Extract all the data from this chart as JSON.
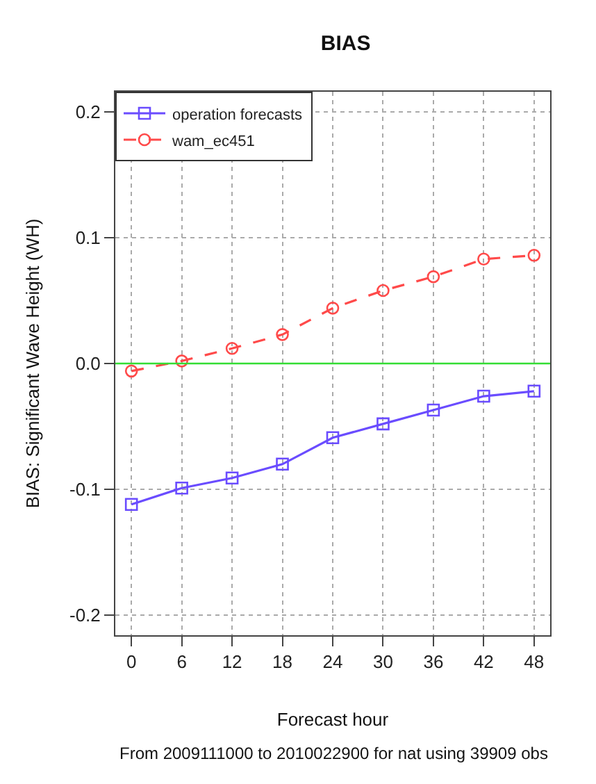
{
  "chart_data": {
    "type": "line",
    "title": "BIAS",
    "xlabel": "Forecast hour",
    "ylabel": "BIAS: Significant Wave Height (WH)",
    "annotations": [
      "From 2009111000 to 2010022900 for nat using 39909 obs"
    ],
    "x": [
      0,
      6,
      12,
      18,
      24,
      30,
      36,
      42,
      48
    ],
    "series": [
      {
        "name": "operation forecasts",
        "color": "#6a4cff",
        "marker": "square",
        "line_style": "solid",
        "values": [
          -0.112,
          -0.099,
          -0.091,
          -0.08,
          -0.059,
          -0.048,
          -0.037,
          -0.026,
          -0.022
        ]
      },
      {
        "name": "wam_ec451",
        "color": "#ff4a4a",
        "marker": "circle",
        "line_style": "dashed",
        "values": [
          -0.006,
          0.002,
          0.012,
          0.023,
          0.044,
          0.058,
          0.069,
          0.083,
          0.086
        ]
      }
    ],
    "ref_lines": [
      {
        "axis": "y",
        "value": 0,
        "color": "#33dd33",
        "line_style": "solid"
      }
    ],
    "xlim": [
      -1.92,
      49.92
    ],
    "xticks": [
      0,
      6,
      12,
      18,
      24,
      30,
      36,
      42,
      48
    ],
    "ylim": [
      -0.216,
      0.216
    ],
    "yticks": [
      -0.2,
      -0.1,
      {
        "value": 0,
        "label": "0.0"
      },
      0.1,
      0.2
    ],
    "grid": true,
    "legend": "top left"
  }
}
